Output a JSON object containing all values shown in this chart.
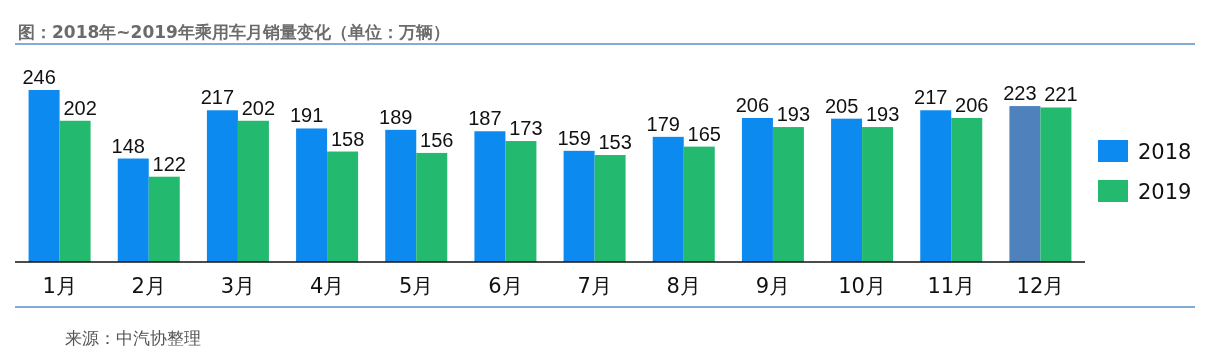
{
  "chart_data": {
    "type": "bar",
    "title": "图：2018年~2019年乘用车月销量变化（单位：万辆）",
    "categories": [
      "1月",
      "2月",
      "3月",
      "4月",
      "5月",
      "6月",
      "7月",
      "8月",
      "9月",
      "10月",
      "11月",
      "12月"
    ],
    "series": [
      {
        "name": "2018",
        "color": "#0d8af0",
        "colors": [
          "#0d8af0",
          "#0d8af0",
          "#0d8af0",
          "#0d8af0",
          "#0d8af0",
          "#0d8af0",
          "#0d8af0",
          "#0d8af0",
          "#0d8af0",
          "#0d8af0",
          "#0d8af0",
          "#4f81bd"
        ],
        "values": [
          246,
          148,
          217,
          191,
          189,
          187,
          159,
          179,
          206,
          205,
          217,
          223
        ]
      },
      {
        "name": "2019",
        "color": "#23b96f",
        "values": [
          202,
          122,
          202,
          158,
          156,
          173,
          153,
          165,
          193,
          193,
          206,
          221
        ]
      }
    ],
    "data_labels": true,
    "legend": "right",
    "annotations": [
      "来源：中汽协整理"
    ]
  }
}
